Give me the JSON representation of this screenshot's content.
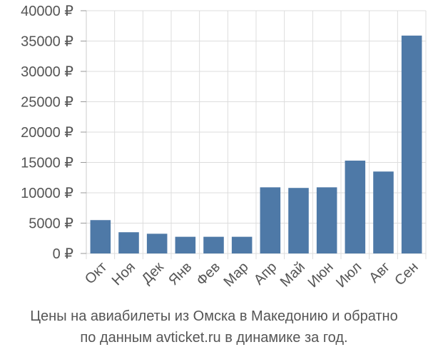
{
  "chart_data": {
    "type": "bar",
    "title": "",
    "xlabel": "",
    "ylabel": "",
    "categories": [
      "Окт",
      "Ноя",
      "Дек",
      "Янв",
      "Фев",
      "Мар",
      "Апр",
      "Май",
      "Июн",
      "Июл",
      "Авг",
      "Сен"
    ],
    "values": [
      5500,
      3500,
      3250,
      2750,
      2750,
      2750,
      10900,
      10800,
      10900,
      15300,
      13500,
      35900
    ],
    "ylim": [
      0,
      40000
    ],
    "yticks": [
      0,
      5000,
      10000,
      15000,
      20000,
      25000,
      30000,
      35000,
      40000
    ],
    "ytick_labels": [
      "0 ₽",
      "5000 ₽",
      "10000 ₽",
      "15000 ₽",
      "20000 ₽",
      "25000 ₽",
      "30000 ₽",
      "35000 ₽",
      "40000 ₽"
    ],
    "grid": true,
    "bar_color": "#4e79a7",
    "grid_color": "#dddddd"
  },
  "caption": {
    "line1": "Цены на авиабилеты из Омска в Македонию и обратно",
    "line2": "по данным avticket.ru в динамике за год."
  }
}
